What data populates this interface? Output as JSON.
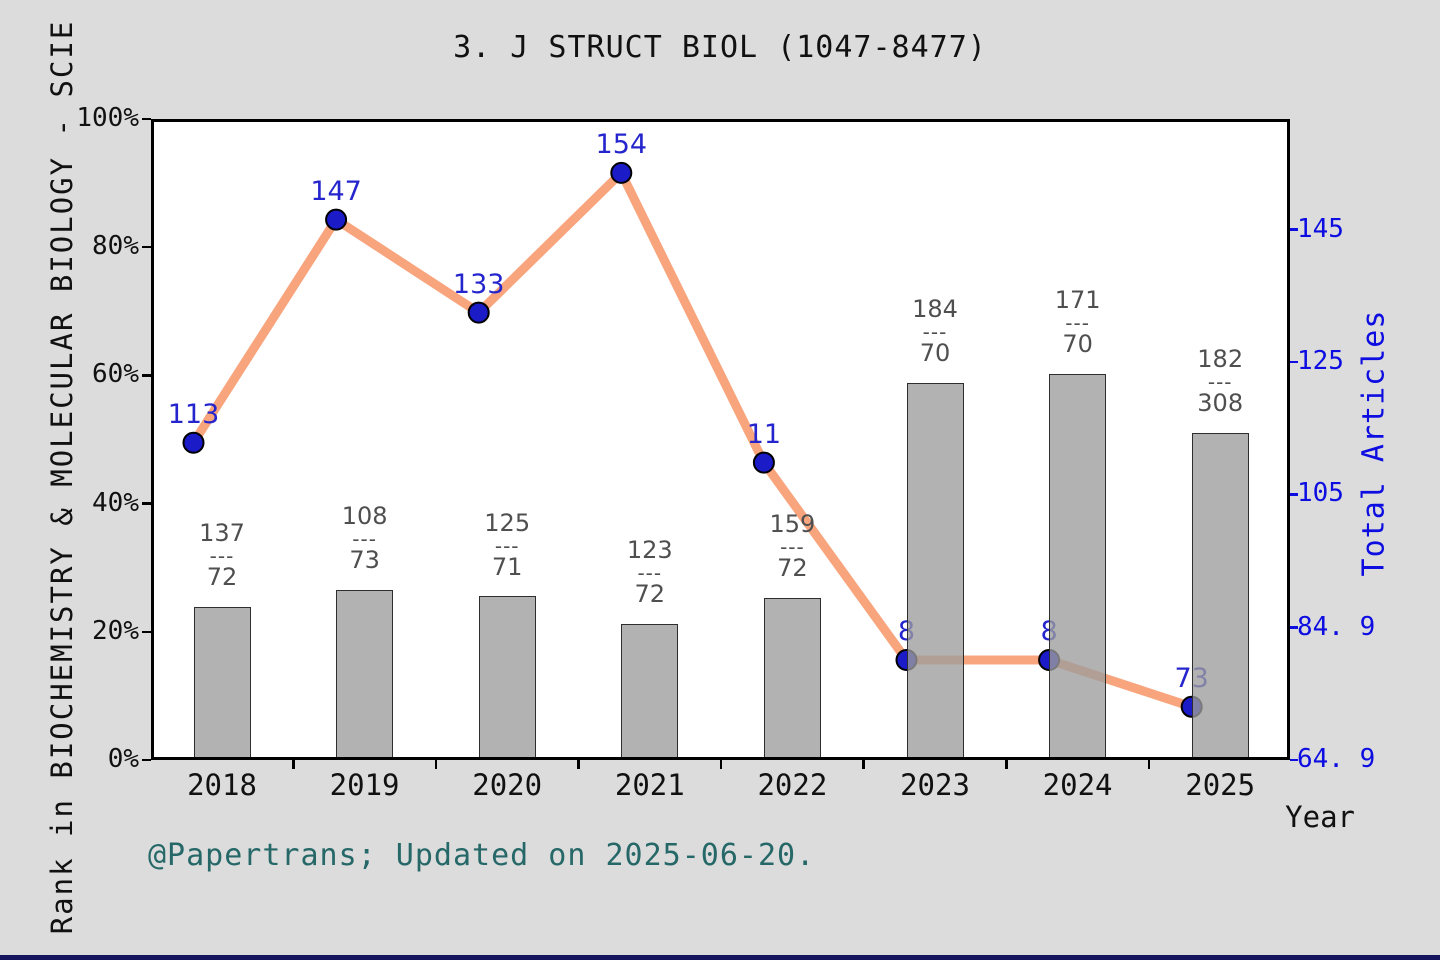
{
  "footer": "@Papertrans; Updated on 2025-06-20.",
  "chart_data": {
    "type": "bar+line",
    "title": "3. J STRUCT BIOL (1047-8477)",
    "categories": [
      "2018",
      "2019",
      "2020",
      "2021",
      "2022",
      "2023",
      "2024",
      "2025"
    ],
    "x_axis": {
      "label": "Year"
    },
    "left_axis": {
      "label": "Rank in BIOCHEMISTRY & MOLECULAR BIOLOGY - SCIE",
      "tick_labels": [
        "0%",
        "20%",
        "40%",
        "60%",
        "80%",
        "100%"
      ],
      "tick_values_pct": [
        0,
        20,
        40,
        60,
        80,
        100
      ],
      "range_pct": [
        0,
        100
      ],
      "color": "#111111"
    },
    "right_axis": {
      "label": "Total Articles",
      "tick_labels": [
        "64. 9",
        "84. 9",
        "105",
        "125",
        "145"
      ],
      "tick_values": [
        64.9,
        84.9,
        105,
        125,
        145
      ],
      "range": [
        64.9,
        161.7
      ],
      "color": "#0d0de2"
    },
    "line_series": {
      "name": "Rank percentile line",
      "axis": "left",
      "values_pct": [
        49.5,
        84.3,
        69.8,
        91.6,
        46.4,
        15.6,
        15.6,
        8.3
      ],
      "point_labels": [
        "113",
        "147",
        "133",
        "154",
        "11",
        "8",
        "8",
        "73"
      ],
      "line_color": "#f8a47d",
      "marker_fill": "#1b1bc8",
      "marker_edge": "#000000",
      "label_color": "#2525cd"
    },
    "bar_series": {
      "name": "Total Articles bars",
      "axis": "right",
      "values": [
        88.0,
        90.6,
        89.6,
        85.5,
        89.4,
        121.8,
        123.2,
        114.3
      ],
      "fraction_labels": [
        {
          "num": "137",
          "den": "72"
        },
        {
          "num": "108",
          "den": "73"
        },
        {
          "num": "125",
          "den": "71"
        },
        {
          "num": "123",
          "den": "72"
        },
        {
          "num": "159",
          "den": "72"
        },
        {
          "num": "184",
          "den": "70"
        },
        {
          "num": "171",
          "den": "70"
        },
        {
          "num": "182",
          "den": "308"
        }
      ],
      "bar_color": "rgba(156,156,156,0.78)",
      "edge_color": "#2e2e2e",
      "label_color": "#4f4f4f"
    },
    "grid": false,
    "legend": "none"
  }
}
